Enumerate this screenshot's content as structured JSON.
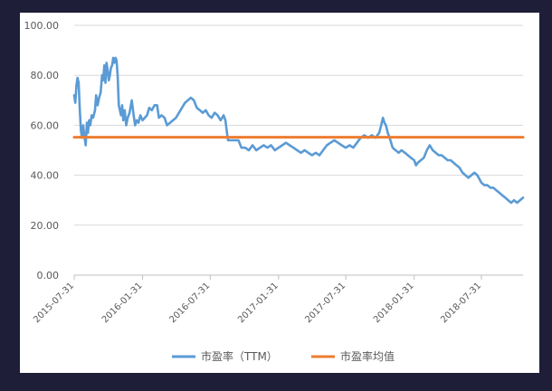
{
  "chart_data": {
    "type": "line",
    "title": "",
    "xlabel": "",
    "ylabel": "",
    "ylim": [
      0,
      100
    ],
    "y_ticks": [
      "0.00",
      "20.00",
      "40.00",
      "60.00",
      "80.00",
      "100.00"
    ],
    "x_range": [
      "2015-07-31",
      "2018-11-20"
    ],
    "x_ticks": [
      "2015-07-31",
      "2016-01-31",
      "2016-07-31",
      "2017-01-31",
      "2017-07-31",
      "2018-01-31",
      "2018-07-31"
    ],
    "grid": "horizontal",
    "legend_position": "bottom",
    "series": [
      {
        "name": "市盈率（TTM）",
        "color": "#5b9bd5",
        "points": [
          [
            "2015-07-31",
            72
          ],
          [
            "2015-08-03",
            69
          ],
          [
            "2015-08-06",
            76
          ],
          [
            "2015-08-09",
            79
          ],
          [
            "2015-08-12",
            77
          ],
          [
            "2015-08-15",
            66
          ],
          [
            "2015-08-18",
            58
          ],
          [
            "2015-08-21",
            55
          ],
          [
            "2015-08-24",
            60
          ],
          [
            "2015-08-27",
            56
          ],
          [
            "2015-08-31",
            52
          ],
          [
            "2015-09-03",
            61
          ],
          [
            "2015-09-06",
            57
          ],
          [
            "2015-09-09",
            62
          ],
          [
            "2015-09-12",
            60
          ],
          [
            "2015-09-16",
            64
          ],
          [
            "2015-09-20",
            63
          ],
          [
            "2015-09-25",
            66
          ],
          [
            "2015-09-28",
            72
          ],
          [
            "2015-10-02",
            68
          ],
          [
            "2015-10-06",
            71
          ],
          [
            "2015-10-10",
            73
          ],
          [
            "2015-10-14",
            80
          ],
          [
            "2015-10-17",
            78
          ],
          [
            "2015-10-20",
            84
          ],
          [
            "2015-10-23",
            77
          ],
          [
            "2015-10-26",
            85
          ],
          [
            "2015-10-29",
            82
          ],
          [
            "2015-11-01",
            78
          ],
          [
            "2015-11-04",
            80
          ],
          [
            "2015-11-07",
            83
          ],
          [
            "2015-11-10",
            84
          ],
          [
            "2015-11-13",
            87
          ],
          [
            "2015-11-16",
            85
          ],
          [
            "2015-11-19",
            87
          ],
          [
            "2015-11-22",
            86
          ],
          [
            "2015-11-25",
            80
          ],
          [
            "2015-11-28",
            68
          ],
          [
            "2015-12-01",
            66
          ],
          [
            "2015-12-04",
            64
          ],
          [
            "2015-12-07",
            68
          ],
          [
            "2015-12-10",
            62
          ],
          [
            "2015-12-14",
            66
          ],
          [
            "2015-12-18",
            60
          ],
          [
            "2015-12-22",
            63
          ],
          [
            "2015-12-27",
            65
          ],
          [
            "2016-01-02",
            70
          ],
          [
            "2016-01-07",
            64
          ],
          [
            "2016-01-11",
            60
          ],
          [
            "2016-01-15",
            62
          ],
          [
            "2016-01-20",
            61
          ],
          [
            "2016-01-25",
            64
          ],
          [
            "2016-01-31",
            62
          ],
          [
            "2016-02-06",
            63
          ],
          [
            "2016-02-12",
            64
          ],
          [
            "2016-02-18",
            67
          ],
          [
            "2016-02-25",
            66
          ],
          [
            "2016-03-03",
            68
          ],
          [
            "2016-03-10",
            68
          ],
          [
            "2016-03-15",
            63
          ],
          [
            "2016-03-22",
            64
          ],
          [
            "2016-03-30",
            63
          ],
          [
            "2016-04-06",
            60
          ],
          [
            "2016-04-14",
            61
          ],
          [
            "2016-04-22",
            62
          ],
          [
            "2016-04-30",
            63
          ],
          [
            "2016-05-08",
            65
          ],
          [
            "2016-05-16",
            67
          ],
          [
            "2016-05-24",
            69
          ],
          [
            "2016-06-01",
            70
          ],
          [
            "2016-06-09",
            71
          ],
          [
            "2016-06-17",
            70
          ],
          [
            "2016-06-25",
            67
          ],
          [
            "2016-07-03",
            66
          ],
          [
            "2016-07-11",
            65
          ],
          [
            "2016-07-19",
            66
          ],
          [
            "2016-07-27",
            64
          ],
          [
            "2016-08-04",
            63
          ],
          [
            "2016-08-12",
            65
          ],
          [
            "2016-08-20",
            64
          ],
          [
            "2016-08-28",
            62
          ],
          [
            "2016-09-05",
            64
          ],
          [
            "2016-09-10",
            62
          ],
          [
            "2016-09-14",
            57
          ],
          [
            "2016-09-17",
            54
          ],
          [
            "2016-09-25",
            54
          ],
          [
            "2016-10-05",
            54
          ],
          [
            "2016-10-15",
            54
          ],
          [
            "2016-10-23",
            51
          ],
          [
            "2016-11-02",
            51
          ],
          [
            "2016-11-12",
            50
          ],
          [
            "2016-11-22",
            52
          ],
          [
            "2016-12-02",
            50
          ],
          [
            "2016-12-12",
            51
          ],
          [
            "2016-12-22",
            52
          ],
          [
            "2017-01-01",
            51
          ],
          [
            "2017-01-11",
            52
          ],
          [
            "2017-01-21",
            50
          ],
          [
            "2017-01-31",
            51
          ],
          [
            "2017-02-10",
            52
          ],
          [
            "2017-02-20",
            53
          ],
          [
            "2017-03-02",
            52
          ],
          [
            "2017-03-12",
            51
          ],
          [
            "2017-03-22",
            50
          ],
          [
            "2017-04-01",
            49
          ],
          [
            "2017-04-11",
            50
          ],
          [
            "2017-04-21",
            49
          ],
          [
            "2017-05-01",
            48
          ],
          [
            "2017-05-11",
            49
          ],
          [
            "2017-05-21",
            48
          ],
          [
            "2017-05-31",
            50
          ],
          [
            "2017-06-10",
            52
          ],
          [
            "2017-06-20",
            53
          ],
          [
            "2017-06-30",
            54
          ],
          [
            "2017-07-10",
            53
          ],
          [
            "2017-07-20",
            52
          ],
          [
            "2017-07-31",
            51
          ],
          [
            "2017-08-10",
            52
          ],
          [
            "2017-08-20",
            51
          ],
          [
            "2017-08-30",
            53
          ],
          [
            "2017-09-09",
            55
          ],
          [
            "2017-09-19",
            56
          ],
          [
            "2017-09-29",
            55
          ],
          [
            "2017-10-09",
            56
          ],
          [
            "2017-10-19",
            55
          ],
          [
            "2017-10-29",
            57
          ],
          [
            "2017-11-03",
            60
          ],
          [
            "2017-11-08",
            63
          ],
          [
            "2017-11-12",
            61
          ],
          [
            "2017-11-16",
            60
          ],
          [
            "2017-11-21",
            57
          ],
          [
            "2017-11-26",
            55
          ],
          [
            "2017-12-04",
            51
          ],
          [
            "2017-12-12",
            50
          ],
          [
            "2017-12-20",
            49
          ],
          [
            "2017-12-28",
            50
          ],
          [
            "2018-01-06",
            49
          ],
          [
            "2018-01-14",
            48
          ],
          [
            "2018-01-22",
            47
          ],
          [
            "2018-01-31",
            46
          ],
          [
            "2018-02-05",
            44
          ],
          [
            "2018-02-10",
            45
          ],
          [
            "2018-02-18",
            46
          ],
          [
            "2018-02-26",
            47
          ],
          [
            "2018-03-06",
            50
          ],
          [
            "2018-03-14",
            52
          ],
          [
            "2018-03-22",
            50
          ],
          [
            "2018-03-30",
            49
          ],
          [
            "2018-04-07",
            48
          ],
          [
            "2018-04-15",
            48
          ],
          [
            "2018-04-23",
            47
          ],
          [
            "2018-05-01",
            46
          ],
          [
            "2018-05-09",
            46
          ],
          [
            "2018-05-17",
            45
          ],
          [
            "2018-05-25",
            44
          ],
          [
            "2018-06-02",
            43
          ],
          [
            "2018-06-10",
            41
          ],
          [
            "2018-06-18",
            40
          ],
          [
            "2018-06-26",
            39
          ],
          [
            "2018-07-04",
            40
          ],
          [
            "2018-07-12",
            41
          ],
          [
            "2018-07-20",
            40
          ],
          [
            "2018-07-31",
            37
          ],
          [
            "2018-08-08",
            36
          ],
          [
            "2018-08-16",
            36
          ],
          [
            "2018-08-24",
            35
          ],
          [
            "2018-09-01",
            35
          ],
          [
            "2018-09-09",
            34
          ],
          [
            "2018-09-17",
            33
          ],
          [
            "2018-09-25",
            32
          ],
          [
            "2018-10-03",
            31
          ],
          [
            "2018-10-11",
            30
          ],
          [
            "2018-10-19",
            29
          ],
          [
            "2018-10-27",
            30
          ],
          [
            "2018-11-04",
            29
          ],
          [
            "2018-11-12",
            30
          ],
          [
            "2018-11-20",
            31
          ]
        ]
      },
      {
        "name": "市盈率均值",
        "color": "#ed7d31",
        "points": [
          [
            "2015-07-31",
            55.2
          ],
          [
            "2018-11-20",
            55.2
          ]
        ]
      }
    ]
  }
}
